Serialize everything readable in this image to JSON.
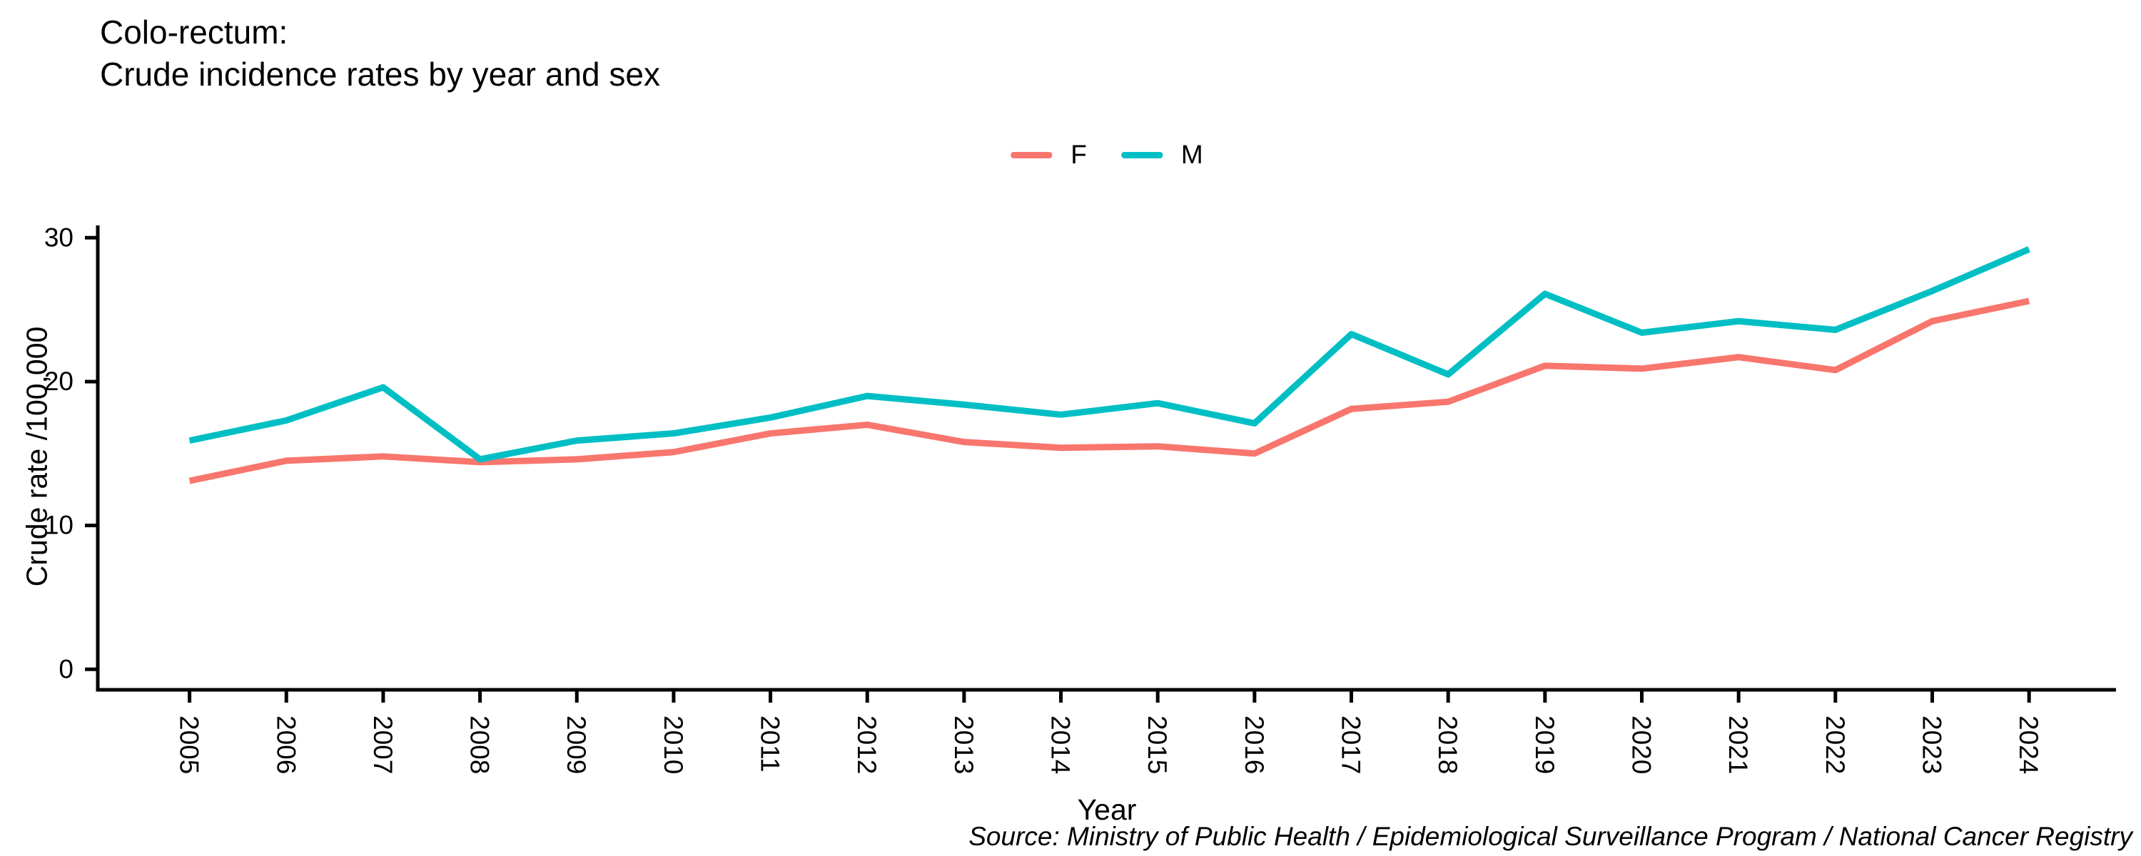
{
  "title": {
    "line1": "Colo-rectum:",
    "line2": "Crude incidence rates by year and sex"
  },
  "legend": {
    "items": [
      {
        "label": "F",
        "color": "#F8766D"
      },
      {
        "label": "M",
        "color": "#00BFC4"
      }
    ]
  },
  "axes": {
    "y_label": "Crude rate /100,000",
    "x_label": "Year",
    "y_ticks": [
      "0",
      "10",
      "20",
      "30"
    ]
  },
  "caption": "Source: Ministry of Public Health / Epidemiological Surveillance Program / National Cancer Registry",
  "chart_data": {
    "type": "line",
    "title": "Colo-rectum: Crude incidence rates by year and sex",
    "x": [
      2005,
      2006,
      2007,
      2008,
      2009,
      2010,
      2011,
      2012,
      2013,
      2014,
      2015,
      2016,
      2017,
      2018,
      2019,
      2020,
      2021,
      2022,
      2023,
      2024
    ],
    "series": [
      {
        "name": "F",
        "color": "#F8766D",
        "values": [
          13.1,
          14.5,
          14.8,
          14.4,
          14.6,
          15.1,
          16.4,
          17.0,
          15.8,
          15.4,
          15.5,
          15.0,
          18.1,
          18.6,
          21.1,
          20.9,
          21.7,
          20.8,
          24.2,
          25.6
        ]
      },
      {
        "name": "M",
        "color": "#00BFC4",
        "values": [
          15.9,
          17.3,
          19.6,
          14.6,
          15.9,
          16.4,
          17.5,
          19.0,
          18.4,
          17.7,
          18.5,
          17.1,
          23.3,
          20.5,
          26.1,
          23.4,
          24.2,
          23.6,
          26.3,
          29.2
        ]
      }
    ],
    "xlabel": "Year",
    "ylabel": "Crude rate /100,000",
    "ylim": [
      0,
      30
    ],
    "xlim": [
      2005,
      2024
    ],
    "grid": false,
    "legend_position": "top-center",
    "axis_color": "#000000",
    "background": "#ffffff"
  }
}
